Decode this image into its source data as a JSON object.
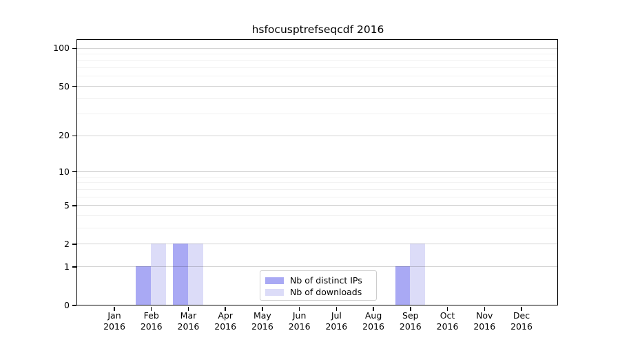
{
  "chart_data": {
    "type": "bar",
    "title": "hsfocusptrefseqcdf 2016",
    "categories": [
      "Jan",
      "Feb",
      "Mar",
      "Apr",
      "May",
      "Jun",
      "Jul",
      "Aug",
      "Sep",
      "Oct",
      "Nov",
      "Dec"
    ],
    "year_label": "2016",
    "series": [
      {
        "name": "Nb of distinct IPs",
        "color": "#a9a9f4",
        "values": [
          0,
          1,
          2,
          0,
          0,
          0,
          0,
          0,
          1,
          0,
          0,
          0
        ]
      },
      {
        "name": "Nb of downloads",
        "color": "#dcdcf8",
        "values": [
          0,
          2,
          2,
          0,
          0,
          0,
          0,
          0,
          2,
          0,
          0,
          0
        ]
      }
    ],
    "xlabel": "",
    "ylabel": "",
    "yscale": "log1p",
    "ylim": [
      0,
      115
    ],
    "yticks": [
      0,
      1,
      2,
      5,
      10,
      20,
      50,
      100
    ],
    "ytick_labels": [
      "0",
      "1",
      "2",
      "5",
      "10",
      "20",
      "50",
      "100"
    ],
    "minor_yticks": [
      3,
      4,
      6,
      7,
      8,
      9,
      30,
      40,
      60,
      70,
      80,
      90
    ],
    "grid": true,
    "legend_position": "lower center"
  }
}
